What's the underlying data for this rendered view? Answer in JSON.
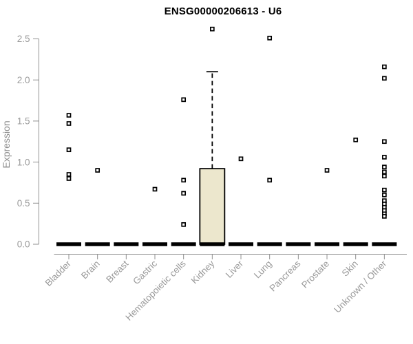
{
  "chart_data": {
    "type": "box",
    "title": "ENSG00000206613 - U6",
    "ylabel": "Expression",
    "xlabel": "",
    "ylim": [
      0.0,
      2.5
    ],
    "yticks": [
      0.0,
      0.5,
      1.0,
      1.5,
      2.0,
      2.5
    ],
    "grid": false,
    "legend": "none",
    "categories": [
      "Bladder",
      "Brain",
      "Breast",
      "Gastric",
      "Hematopoietic cells",
      "Kidney",
      "Liver",
      "Lung",
      "Pancreas",
      "Prostate",
      "Skin",
      "Unknown / Other"
    ],
    "boxes": [
      {
        "category": "Bladder",
        "median": 0,
        "q1": 0,
        "q3": 0,
        "whisker_low": 0,
        "whisker_high": 0,
        "points": [
          1.57,
          1.47,
          1.15,
          0.85,
          0.8
        ]
      },
      {
        "category": "Brain",
        "median": 0,
        "q1": 0,
        "q3": 0,
        "whisker_low": 0,
        "whisker_high": 0,
        "points": [
          0.9
        ]
      },
      {
        "category": "Breast",
        "median": 0,
        "q1": 0,
        "q3": 0,
        "whisker_low": 0,
        "whisker_high": 0,
        "points": []
      },
      {
        "category": "Gastric",
        "median": 0,
        "q1": 0,
        "q3": 0,
        "whisker_low": 0,
        "whisker_high": 0,
        "points": [
          0.67
        ]
      },
      {
        "category": "Hematopoietic cells",
        "median": 0,
        "q1": 0,
        "q3": 0,
        "whisker_low": 0,
        "whisker_high": 0,
        "points": [
          1.76,
          0.78,
          0.62,
          0.24
        ]
      },
      {
        "category": "Kidney",
        "median": 0,
        "q1": 0,
        "q3": 0.92,
        "whisker_low": 0,
        "whisker_high": 2.1,
        "points": [
          2.62
        ]
      },
      {
        "category": "Liver",
        "median": 0,
        "q1": 0,
        "q3": 0,
        "whisker_low": 0,
        "whisker_high": 0,
        "points": [
          1.04
        ]
      },
      {
        "category": "Lung",
        "median": 0,
        "q1": 0,
        "q3": 0,
        "whisker_low": 0,
        "whisker_high": 0,
        "points": [
          2.51,
          0.78
        ]
      },
      {
        "category": "Pancreas",
        "median": 0,
        "q1": 0,
        "q3": 0,
        "whisker_low": 0,
        "whisker_high": 0,
        "points": []
      },
      {
        "category": "Prostate",
        "median": 0,
        "q1": 0,
        "q3": 0,
        "whisker_low": 0,
        "whisker_high": 0,
        "points": [
          0.9
        ]
      },
      {
        "category": "Skin",
        "median": 0,
        "q1": 0,
        "q3": 0,
        "whisker_low": 0,
        "whisker_high": 0,
        "points": [
          1.27
        ]
      },
      {
        "category": "Unknown / Other",
        "median": 0,
        "q1": 0,
        "q3": 0,
        "whisker_low": 0,
        "whisker_high": 0,
        "points": [
          2.16,
          2.02,
          1.25,
          1.06,
          0.94,
          0.88,
          0.83,
          0.66,
          0.6,
          0.53,
          0.49,
          0.45,
          0.41,
          0.37,
          0.34
        ]
      }
    ],
    "colors": {
      "background": "#ffffff",
      "title_text": "#000000",
      "axis_line": "#8f8f8f",
      "axis_text": "#9a9a9a",
      "box_fill": "#ece7cd",
      "box_border": "#000000",
      "median_bar": "#000000",
      "point_stroke": "#000000",
      "point_fill": "#ffffff"
    }
  }
}
